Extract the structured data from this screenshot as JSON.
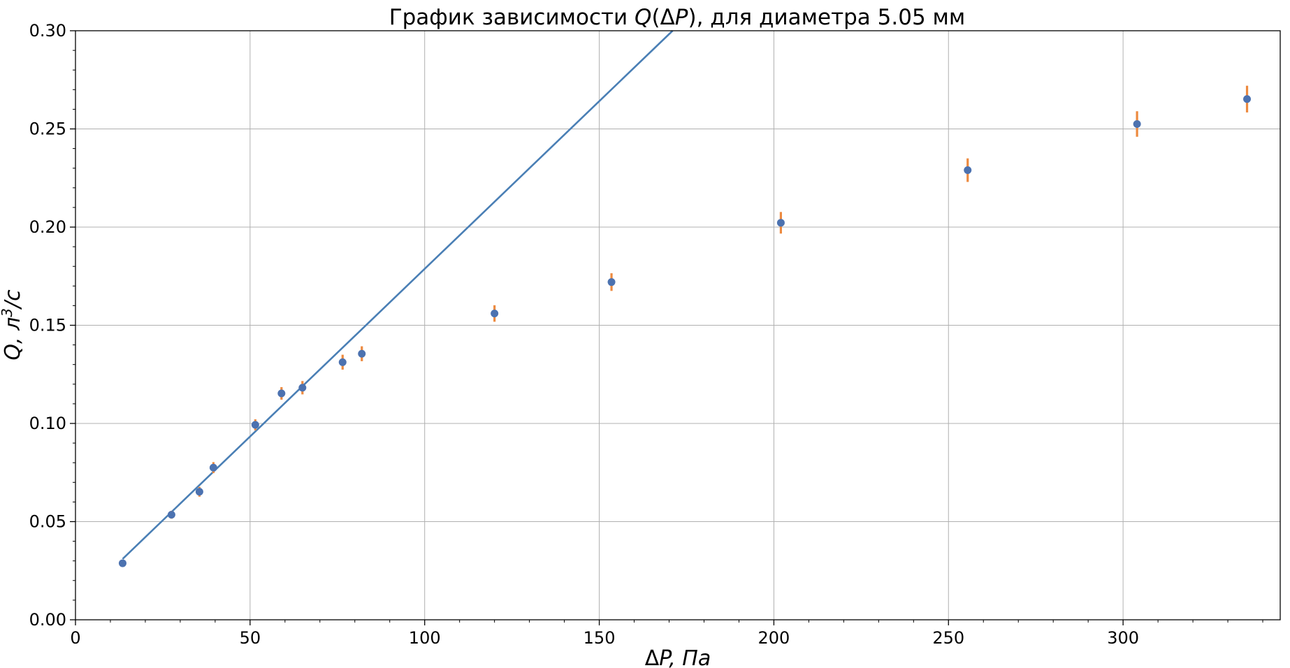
{
  "chart_data": {
    "type": "scatter",
    "title": {
      "prefix": "График зависимости ",
      "symbol": "Q",
      "paren_open": "(",
      "delta": "Δ",
      "symbol2": "P",
      "suffix": "), для диаметра 5.05 мм"
    },
    "xlabel": {
      "delta": "Δ",
      "rest": "P, Па"
    },
    "ylabel": {
      "q": "Q",
      "sep": ", л",
      "sup": "3",
      "unit": "/с"
    },
    "xlim": [
      0,
      345
    ],
    "ylim": [
      0,
      0.3
    ],
    "xticks": [
      0,
      50,
      100,
      150,
      200,
      250,
      300
    ],
    "xtick_labels": [
      "0",
      "50",
      "100",
      "150",
      "200",
      "250",
      "300"
    ],
    "yticks": [
      0,
      0.05,
      0.1,
      0.15,
      0.2,
      0.25,
      0.3
    ],
    "ytick_labels": [
      "0.00",
      "0.05",
      "0.10",
      "0.15",
      "0.20",
      "0.25",
      "0.30"
    ],
    "grid": true,
    "series": [
      {
        "kind": "points-with-errorbars",
        "x": [
          13.5,
          27.5,
          35.5,
          39.5,
          51.5,
          59,
          65,
          76.5,
          82,
          120,
          153.5,
          202,
          255.5,
          304,
          335.5
        ],
        "y": [
          0.0288,
          0.0535,
          0.0652,
          0.0775,
          0.0993,
          0.1153,
          0.1182,
          0.1312,
          0.1355,
          0.156,
          0.172,
          0.2022,
          0.229,
          0.2525,
          0.2652
        ],
        "yerr": [
          0.0012,
          0.002,
          0.0025,
          0.0028,
          0.0028,
          0.0032,
          0.0034,
          0.0038,
          0.0038,
          0.0042,
          0.0045,
          0.0055,
          0.006,
          0.0065,
          0.0068
        ],
        "marker_color": "#4c72b0",
        "errorbar_color": "#ed8a3f"
      },
      {
        "kind": "line",
        "x": [
          13.5,
          171
        ],
        "y": [
          0.031,
          0.3
        ],
        "color": "#4a7fb5"
      }
    ]
  }
}
